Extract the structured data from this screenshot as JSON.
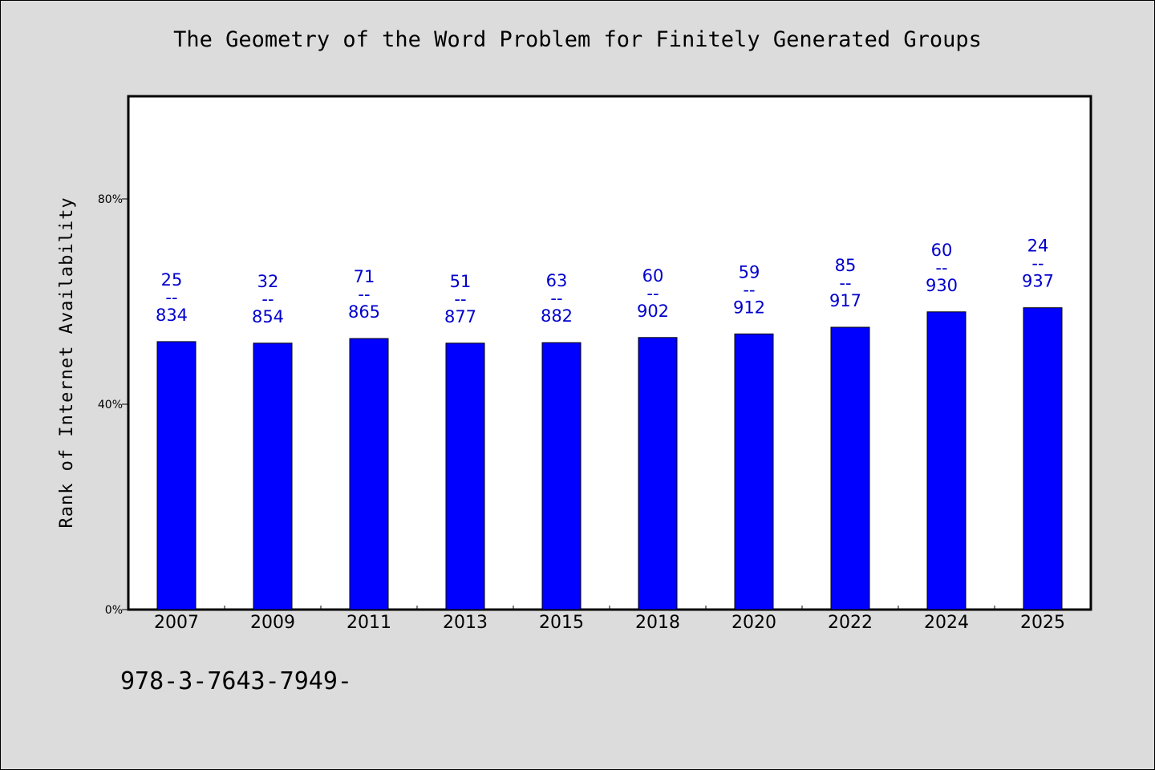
{
  "chart_data": {
    "type": "bar",
    "title": "The Geometry of the Word Problem for Finitely Generated Groups",
    "ylabel": "Rank of Internet Availability",
    "xlabel": "",
    "categories": [
      "2007",
      "2009",
      "2011",
      "2013",
      "2015",
      "2018",
      "2020",
      "2022",
      "2024",
      "2025"
    ],
    "values": [
      52.2,
      51.9,
      52.8,
      51.9,
      52.0,
      53.0,
      53.7,
      55.0,
      58.0,
      58.8
    ],
    "data_labels": [
      {
        "top": "25",
        "sep": "--",
        "bottom": "834"
      },
      {
        "top": "32",
        "sep": "--",
        "bottom": "854"
      },
      {
        "top": "71",
        "sep": "--",
        "bottom": "865"
      },
      {
        "top": "51",
        "sep": "--",
        "bottom": "877"
      },
      {
        "top": "63",
        "sep": "--",
        "bottom": "882"
      },
      {
        "top": "60",
        "sep": "--",
        "bottom": "902"
      },
      {
        "top": "59",
        "sep": "--",
        "bottom": "912"
      },
      {
        "top": "85",
        "sep": "--",
        "bottom": "917"
      },
      {
        "top": "60",
        "sep": "--",
        "bottom": "930"
      },
      {
        "top": "24",
        "sep": "--",
        "bottom": "937"
      }
    ],
    "ylim": [
      0,
      100
    ],
    "yticks": [
      0,
      40,
      80
    ],
    "ytick_labels": [
      "0%",
      "40%",
      "80%"
    ],
    "grid": false,
    "legend": "none",
    "colors": {
      "bar": "#0000ff",
      "bar_edge": "#000000",
      "data_label": "#0000cc",
      "plot_background": "#ffffff",
      "page_background": "#dcdcdc"
    }
  },
  "footer": {
    "code": "978-3-7643-7949-"
  }
}
